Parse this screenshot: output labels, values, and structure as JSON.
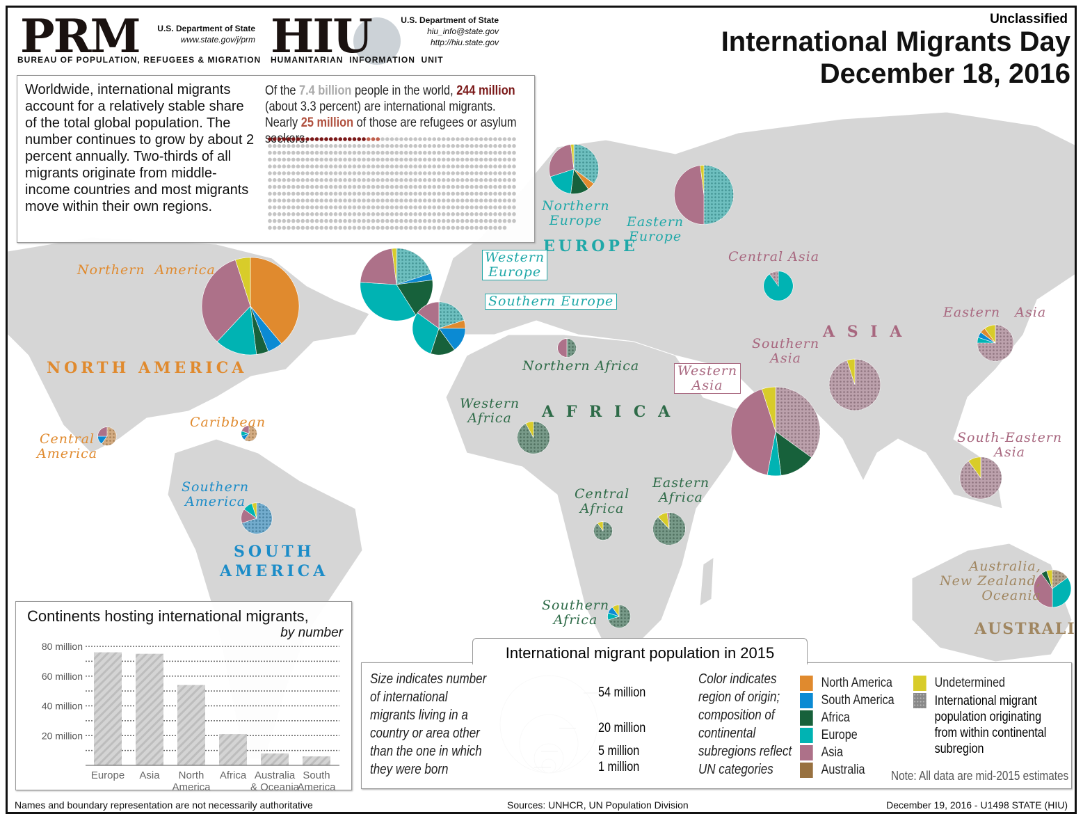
{
  "header": {
    "classification": "Unclassified",
    "title_line1": "International Migrants Day",
    "title_line2": "December 18, 2016",
    "prm": {
      "logo": "PRM",
      "dept": "U.S. Department of State",
      "url": "www.state.gov/j/prm",
      "bureau": "BUREAU OF POPULATION, REFUGEES & MIGRATION"
    },
    "hiu": {
      "logo": "HIU",
      "dept": "U.S. Department of State",
      "email": "hiu_info@state.gov",
      "url": "http://hiu.state.gov",
      "unit": "HUMANITARIAN  INFORMATION  UNIT"
    }
  },
  "intro": {
    "text": "Worldwide, international migrants account for a relatively stable share of the total global population. The number continues to grow by about 2 percent annually. Two-thirds of all migrants originate from middle-income countries and most migrants move within their own regions.",
    "stat_p1": "Of the ",
    "stat_world": "7.4 billion",
    "stat_p2": " people in the world, ",
    "stat_migrants": "244 million",
    "stat_p3": " (about 3.3 percent) are international migrants. Nearly ",
    "stat_refugees": "25 million",
    "stat_p4": " of those are refugees or asylum seekers.",
    "dot_grid": {
      "world_millions": 7400,
      "migrants_millions": 244,
      "refugees_millions": 25,
      "millions_per_dot": 10
    }
  },
  "colors": {
    "North America": "#e08a2e",
    "South America": "#0b8ad3",
    "Africa": "#17613b",
    "Europe": "#00b3b3",
    "Asia": "#ad7189",
    "Australia": "#987140",
    "Undetermined": "#d8cc2a"
  },
  "labels": {
    "continents": {
      "north_america": "NORTH AMERICA",
      "south_america_1": "SOUTH",
      "south_america_2": "AMERICA",
      "europe": "EUROPE",
      "africa": "A F R I C A",
      "asia": "A S I A",
      "australia": "AUSTRALIA"
    },
    "regions": {
      "northern_america": "Northern  America",
      "central_america": "Central\nAmerica",
      "caribbean": "Caribbean",
      "southern_america": "Southern\nAmerica",
      "northern_europe": "Northern\nEurope",
      "eastern_europe": "Eastern\nEurope",
      "western_europe": "Western\nEurope",
      "southern_europe": "Southern Europe",
      "northern_africa": "Northern Africa",
      "western_africa": "Western\nAfrica",
      "central_africa": "Central\nAfrica",
      "eastern_africa": "Eastern\nAfrica",
      "southern_africa": "Southern\nAfrica",
      "central_asia": "Central Asia",
      "eastern_asia": "Eastern   Asia",
      "southern_asia": "Southern\nAsia",
      "western_asia": "Western\nAsia",
      "south_eastern_asia": "South-Eastern\nAsia",
      "oceania": "Australia,\nNew Zealand,\nOceania"
    }
  },
  "pies": [
    {
      "region": "northern_america",
      "size_millions": 54,
      "origin": [
        [
          "North America",
          0.39,
          false
        ],
        [
          "South America",
          0.05,
          false
        ],
        [
          "Africa",
          0.04,
          false
        ],
        [
          "Europe",
          0.14,
          false
        ],
        [
          "Asia",
          0.33,
          false
        ],
        [
          "Undetermined",
          0.05,
          false
        ]
      ]
    },
    {
      "region": "central_america",
      "size_millions": 2,
      "origin": [
        [
          "North America",
          0.6,
          true
        ],
        [
          "South America",
          0.15,
          false
        ],
        [
          "Asia",
          0.25,
          false
        ]
      ]
    },
    {
      "region": "caribbean",
      "size_millions": 1.4,
      "origin": [
        [
          "North America",
          0.6,
          true
        ],
        [
          "South America",
          0.1,
          false
        ],
        [
          "Europe",
          0.1,
          false
        ],
        [
          "Asia",
          0.2,
          false
        ]
      ]
    },
    {
      "region": "southern_america",
      "size_millions": 5.5,
      "origin": [
        [
          "South America",
          0.7,
          true
        ],
        [
          "Asia",
          0.15,
          false
        ],
        [
          "Europe",
          0.1,
          false
        ],
        [
          "Undetermined",
          0.05,
          false
        ]
      ]
    },
    {
      "region": "northern_europe",
      "size_millions": 14,
      "origin": [
        [
          "Europe",
          0.35,
          true
        ],
        [
          "North America",
          0.05,
          false
        ],
        [
          "Africa",
          0.12,
          false
        ],
        [
          "Europe",
          0.18,
          false
        ],
        [
          "Asia",
          0.28,
          false
        ],
        [
          "Undetermined",
          0.02,
          false
        ]
      ]
    },
    {
      "region": "eastern_europe",
      "size_millions": 20,
      "origin": [
        [
          "Europe",
          0.5,
          true
        ],
        [
          "Asia",
          0.48,
          false
        ],
        [
          "Undetermined",
          0.02,
          false
        ]
      ]
    },
    {
      "region": "western_europe",
      "size_millions": 30,
      "origin": [
        [
          "Europe",
          0.2,
          true
        ],
        [
          "South America",
          0.03,
          false
        ],
        [
          "Africa",
          0.18,
          false
        ],
        [
          "Europe",
          0.35,
          false
        ],
        [
          "Asia",
          0.22,
          false
        ],
        [
          "Undetermined",
          0.02,
          false
        ]
      ]
    },
    {
      "region": "southern_europe",
      "size_millions": 16,
      "origin": [
        [
          "Europe",
          0.2,
          true
        ],
        [
          "North America",
          0.05,
          false
        ],
        [
          "South America",
          0.15,
          false
        ],
        [
          "Africa",
          0.15,
          false
        ],
        [
          "Europe",
          0.3,
          false
        ],
        [
          "Asia",
          0.15,
          false
        ]
      ]
    },
    {
      "region": "northern_africa",
      "size_millions": 2,
      "origin": [
        [
          "Africa",
          0.5,
          true
        ],
        [
          "Asia",
          0.5,
          false
        ]
      ]
    },
    {
      "region": "western_africa",
      "size_millions": 6,
      "origin": [
        [
          "Africa",
          0.92,
          true
        ],
        [
          "Undetermined",
          0.08,
          false
        ]
      ]
    },
    {
      "region": "central_africa",
      "size_millions": 2,
      "origin": [
        [
          "Africa",
          0.9,
          true
        ],
        [
          "Undetermined",
          0.1,
          false
        ]
      ]
    },
    {
      "region": "eastern_africa",
      "size_millions": 6,
      "origin": [
        [
          "Africa",
          0.88,
          true
        ],
        [
          "Undetermined",
          0.1,
          false
        ],
        [
          "Asia",
          0.02,
          false
        ]
      ]
    },
    {
      "region": "southern_africa",
      "size_millions": 3,
      "origin": [
        [
          "Africa",
          0.7,
          true
        ],
        [
          "Europe",
          0.1,
          false
        ],
        [
          "South America",
          0.1,
          false
        ],
        [
          "Undetermined",
          0.1,
          false
        ]
      ]
    },
    {
      "region": "central_asia",
      "size_millions": 5,
      "origin": [
        [
          "Europe",
          0.9,
          false
        ],
        [
          "Asia",
          0.1,
          true
        ]
      ]
    },
    {
      "region": "eastern_asia",
      "size_millions": 7.5,
      "origin": [
        [
          "Asia",
          0.75,
          true
        ],
        [
          "Europe",
          0.05,
          false
        ],
        [
          "South America",
          0.05,
          false
        ],
        [
          "North America",
          0.05,
          false
        ],
        [
          "Undetermined",
          0.1,
          false
        ]
      ]
    },
    {
      "region": "southern_asia",
      "size_millions": 15,
      "origin": [
        [
          "Asia",
          0.95,
          true
        ],
        [
          "Undetermined",
          0.05,
          false
        ]
      ]
    },
    {
      "region": "western_asia",
      "size_millions": 45,
      "origin": [
        [
          "Asia",
          0.35,
          true
        ],
        [
          "Africa",
          0.13,
          false
        ],
        [
          "Europe",
          0.05,
          false
        ],
        [
          "Asia",
          0.42,
          false
        ],
        [
          "Undetermined",
          0.05,
          false
        ]
      ]
    },
    {
      "region": "south_eastern_asia",
      "size_millions": 10,
      "origin": [
        [
          "Asia",
          0.9,
          true
        ],
        [
          "Undetermined",
          0.1,
          false
        ]
      ]
    },
    {
      "region": "oceania",
      "size_millions": 8,
      "origin": [
        [
          "Australia",
          0.15,
          true
        ],
        [
          "Europe",
          0.35,
          false
        ],
        [
          "Asia",
          0.4,
          false
        ],
        [
          "Africa",
          0.05,
          false
        ],
        [
          "Undetermined",
          0.05,
          false
        ]
      ]
    }
  ],
  "bar_chart": {
    "title": "Continents hosting international migrants,",
    "subtitle": "by number",
    "chart_data": {
      "type": "bar",
      "categories": [
        "Europe",
        "Asia",
        "North America",
        "Africa",
        "Australia & Oceania",
        "South America"
      ],
      "category_lines": [
        [
          "Europe"
        ],
        [
          "Asia"
        ],
        [
          "North",
          "America"
        ],
        [
          "Africa"
        ],
        [
          "Australia",
          "& Oceania"
        ],
        [
          "South",
          "America"
        ]
      ],
      "values": [
        76,
        75,
        54,
        21,
        8,
        6
      ],
      "ylim": [
        0,
        80
      ],
      "yticks": [
        "20 million",
        "40 million",
        "60 million",
        "80 million"
      ],
      "grid": true
    }
  },
  "legend": {
    "title": "International migrant population in 2015",
    "size_text": "Size indicates number of international migrants living in a country or area other than the one in which they were born",
    "sizes": [
      "54 million",
      "20 million",
      "5 million",
      "1 million"
    ],
    "color_text": "Color indicates region of origin; composition of continental subregions reflect UN categories",
    "items": [
      "North America",
      "South America",
      "Africa",
      "Europe",
      "Asia",
      "Australia"
    ],
    "undetermined": "Undetermined",
    "within": "International migrant population originating from within continental subregion",
    "note": "Note: All data are mid-2015 estimates"
  },
  "footer": {
    "disclaimer": "Names and boundary representation are not necessarily authoritative",
    "sources": "Sources: UNHCR, UN Population Division",
    "date": "December 19, 2016 - U1498 STATE (HIU)"
  }
}
